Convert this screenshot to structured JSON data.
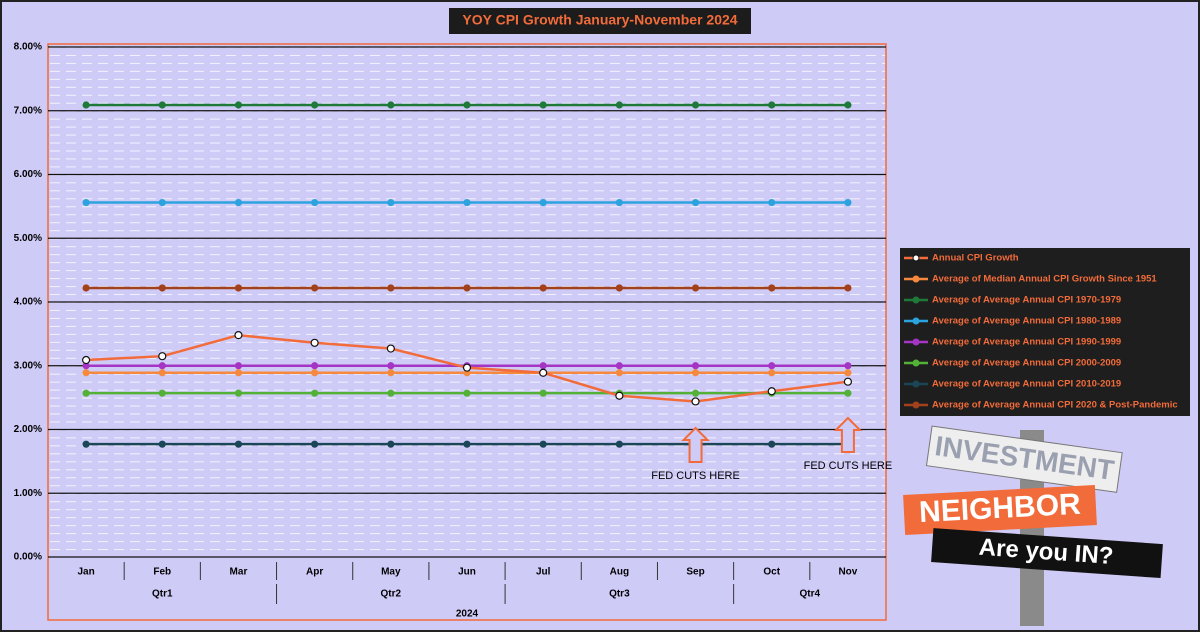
{
  "chart_data": {
    "type": "line",
    "title": "YOY CPI Growth January-November 2024",
    "categories": [
      "Jan",
      "Feb",
      "Mar",
      "Apr",
      "May",
      "Jun",
      "Jul",
      "Aug",
      "Sep",
      "Oct",
      "Nov"
    ],
    "groups": [
      {
        "label": "Qtr1",
        "span": 3
      },
      {
        "label": "Qtr2",
        "span": 3
      },
      {
        "label": "Qtr3",
        "span": 3
      },
      {
        "label": "Qtr4",
        "span": 2
      }
    ],
    "year_label": "2024",
    "series": [
      {
        "name": "Annual CPI Growth",
        "color": "#f26b3a",
        "marker": "hollow",
        "values": [
          3.09,
          3.15,
          3.48,
          3.36,
          3.27,
          2.97,
          2.89,
          2.53,
          2.44,
          2.6,
          2.75
        ]
      },
      {
        "name": "Average of Median Annual CPI Growth Since 1951",
        "color": "#f5893f",
        "values": [
          2.89,
          2.89,
          2.89,
          2.89,
          2.89,
          2.89,
          2.89,
          2.89,
          2.89,
          2.89,
          2.89
        ]
      },
      {
        "name": "Average of Average Annual CPI 1970-1979",
        "color": "#1f7a3a",
        "values": [
          7.09,
          7.09,
          7.09,
          7.09,
          7.09,
          7.09,
          7.09,
          7.09,
          7.09,
          7.09,
          7.09
        ]
      },
      {
        "name": "Average of Average Annual CPI 1980-1989",
        "color": "#2ba3de",
        "values": [
          5.56,
          5.56,
          5.56,
          5.56,
          5.56,
          5.56,
          5.56,
          5.56,
          5.56,
          5.56,
          5.56
        ]
      },
      {
        "name": "Average of Average Annual CPI 1990-1999",
        "color": "#a535c4",
        "values": [
          3.0,
          3.0,
          3.0,
          3.0,
          3.0,
          3.0,
          3.0,
          3.0,
          3.0,
          3.0,
          3.0
        ]
      },
      {
        "name": "Average of Average Annual CPI 2000-2009",
        "color": "#52b136",
        "values": [
          2.57,
          2.57,
          2.57,
          2.57,
          2.57,
          2.57,
          2.57,
          2.57,
          2.57,
          2.57,
          2.57
        ]
      },
      {
        "name": "Average of Average Annual CPI 2010-2019",
        "color": "#1b4657",
        "values": [
          1.77,
          1.77,
          1.77,
          1.77,
          1.77,
          1.77,
          1.77,
          1.77,
          1.77,
          1.77,
          1.77
        ]
      },
      {
        "name": "Average of Average Annual CPI 2020 & Post-Pandemic",
        "color": "#a3411c",
        "values": [
          4.22,
          4.22,
          4.22,
          4.22,
          4.22,
          4.22,
          4.22,
          4.22,
          4.22,
          4.22,
          4.22
        ]
      }
    ],
    "ylim": [
      0,
      8
    ],
    "yticks": [
      {
        "value": 0,
        "label": "0.00%"
      },
      {
        "value": 1,
        "label": "1.00%"
      },
      {
        "value": 2,
        "label": "2.00%"
      },
      {
        "value": 3,
        "label": "3.00%"
      },
      {
        "value": 4,
        "label": "4.00%"
      },
      {
        "value": 5,
        "label": "5.00%"
      },
      {
        "value": 6,
        "label": "6.00%"
      },
      {
        "value": 7,
        "label": "7.00%"
      },
      {
        "value": 8,
        "label": "8.00%"
      }
    ],
    "grid": true,
    "legend": "right",
    "annotations": [
      {
        "text": "FED CUTS HERE",
        "x": "Sep"
      },
      {
        "text": "FED CUTS HERE",
        "x": "Nov"
      }
    ]
  },
  "logo": {
    "top": "INVESTMENT",
    "middle": "NEIGHBOR",
    "bottom": "Are you IN?"
  }
}
